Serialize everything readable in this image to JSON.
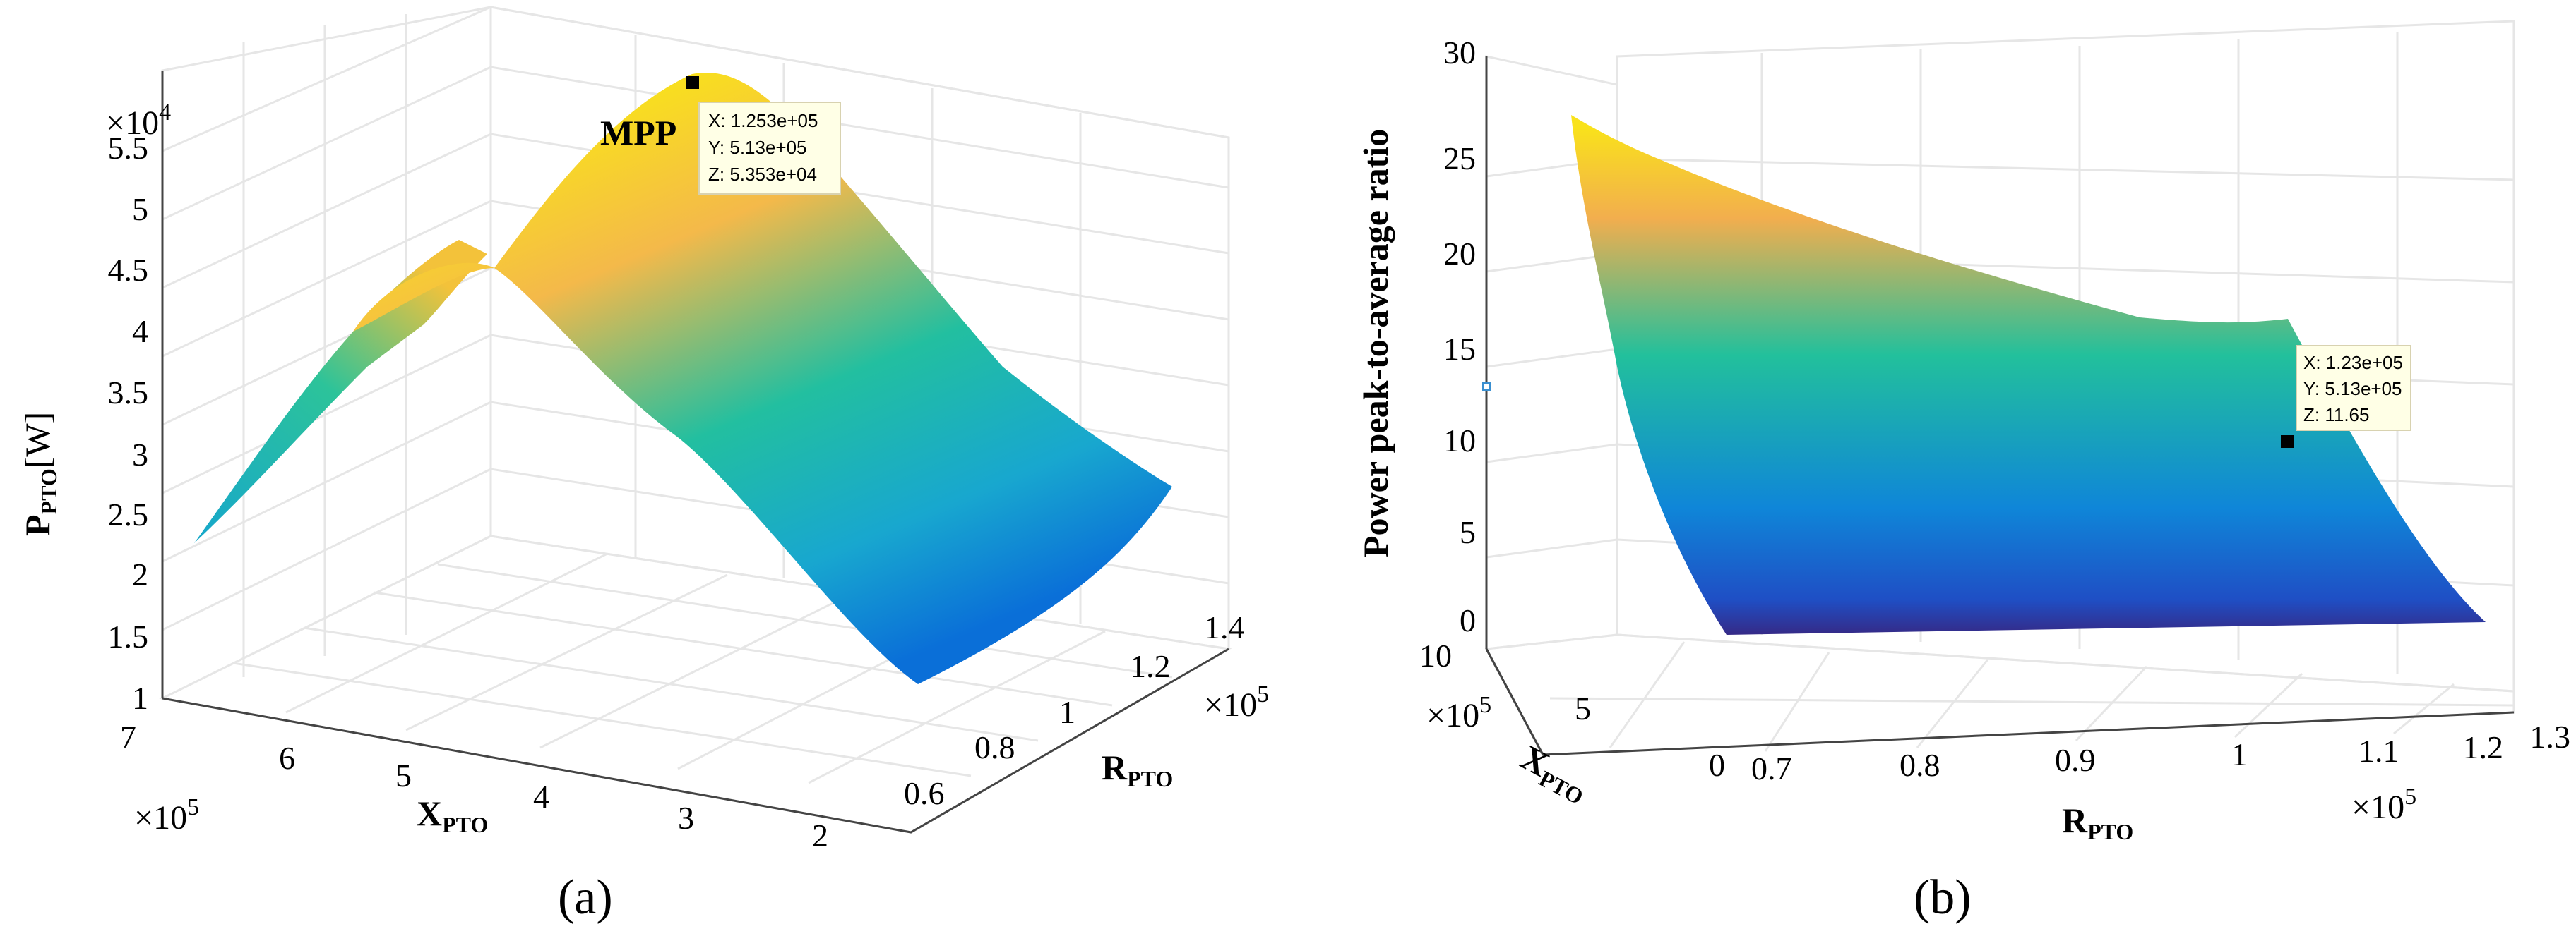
{
  "colors": {
    "surface_high": "#f9e21b",
    "surface_mid_high": "#f2b04a",
    "surface_mid": "#22bfa0",
    "surface_mid_low": "#15a6c9",
    "surface_low": "#0a73d6",
    "surface_min": "#352a87"
  },
  "chart_data": [
    {
      "type": "surface",
      "panel_label": "(a)",
      "zlabel": "PPTO[W]",
      "zlabel_main": "P",
      "zlabel_sub": "PTO",
      "zlabel_unit": "[W]",
      "z_multiplier": "×10⁴",
      "z_multiplier_base": "×10",
      "z_multiplier_exp": "4",
      "zticks": [
        "1",
        "1.5",
        "2",
        "2.5",
        "3",
        "3.5",
        "4",
        "4.5",
        "5",
        "5.5"
      ],
      "zlim": [
        1,
        5.5
      ],
      "xlabel_main": "X",
      "xlabel_sub": "PTO",
      "x_multiplier_base": "×10",
      "x_multiplier_exp": "5",
      "xticks": [
        "7",
        "6",
        "5",
        "4",
        "3",
        "2"
      ],
      "xlim": [
        2,
        7
      ],
      "ylabel_main": "R",
      "ylabel_sub": "PTO",
      "y_multiplier_base": "×10",
      "y_multiplier_exp": "5",
      "yticks": [
        "0.6",
        "0.8",
        "1",
        "1.2",
        "1.4"
      ],
      "ylim": [
        0.6,
        1.4
      ],
      "grid": true,
      "annotation": "MPP",
      "datatip": {
        "x": "X: 1.253e+05",
        "y": "Y: 5.13e+05",
        "z": "Z: 5.353e+04"
      },
      "peak_point": {
        "R": 125300.0,
        "X": 513000.0,
        "P": 53530.0
      }
    },
    {
      "type": "surface",
      "panel_label": "(b)",
      "zlabel": "Power peak-to-average ratio",
      "zticks": [
        "0",
        "5",
        "10",
        "15",
        "20",
        "25",
        "30"
      ],
      "zlim": [
        0,
        30
      ],
      "xlabel_main": "X",
      "xlabel_sub": "PTO",
      "x_multiplier_base": "×10",
      "x_multiplier_exp": "5",
      "xticks": [
        "10",
        "5",
        "0"
      ],
      "xlim": [
        0,
        10
      ],
      "ylabel_main": "R",
      "ylabel_sub": "PTO",
      "y_multiplier_base": "×10",
      "y_multiplier_exp": "5",
      "yticks": [
        "0.7",
        "0.8",
        "0.9",
        "1",
        "1.1",
        "1.2",
        "1.3"
      ],
      "ylim": [
        0.7,
        1.3
      ],
      "grid": true,
      "datatip": {
        "x": "X: 1.23e+05",
        "y": "Y: 5.13e+05",
        "z": "Z: 11.65"
      },
      "marked_point": {
        "R": 123000.0,
        "X": 513000.0,
        "ratio": 11.65
      }
    }
  ]
}
